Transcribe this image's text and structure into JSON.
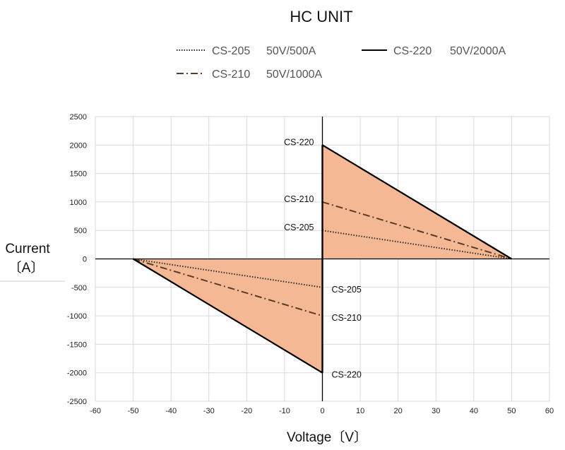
{
  "chart_data": {
    "type": "area",
    "title": "HC UNIT",
    "xlabel": "Voltage〔V〕",
    "ylabel_line1": "Current",
    "ylabel_line2": "〔A〕",
    "xlim": [
      -60,
      60
    ],
    "ylim": [
      -2500,
      2500
    ],
    "x_ticks": [
      -60,
      -50,
      -40,
      -30,
      -20,
      -10,
      0,
      10,
      20,
      30,
      40,
      50,
      60
    ],
    "y_ticks": [
      -2500,
      -2000,
      -1500,
      -1000,
      -500,
      0,
      500,
      1000,
      1500,
      2000,
      2500
    ],
    "grid": true,
    "legend_position": "top",
    "fill_color": "#f4b994",
    "series": [
      {
        "name": "CS-205",
        "spec": "50V/500A",
        "style": "dotted",
        "color": "#2b2b2b",
        "segments": [
          [
            [
              0,
              500
            ],
            [
              50,
              0
            ]
          ],
          [
            [
              -50,
              0
            ],
            [
              0,
              -500
            ]
          ]
        ]
      },
      {
        "name": "CS-210",
        "spec": "50V/1000A",
        "style": "dashdot",
        "color": "#5a3a2a",
        "segments": [
          [
            [
              0,
              1000
            ],
            [
              50,
              0
            ]
          ],
          [
            [
              -50,
              0
            ],
            [
              0,
              -1000
            ]
          ]
        ]
      },
      {
        "name": "CS-220",
        "spec": "50V/2000A",
        "style": "solid",
        "color": "#000000",
        "segments": [
          [
            [
              0,
              2000
            ],
            [
              50,
              0
            ]
          ],
          [
            [
              -50,
              0
            ],
            [
              0,
              -2000
            ]
          ]
        ]
      }
    ],
    "fill_regions": [
      [
        [
          0,
          0
        ],
        [
          0,
          2000
        ],
        [
          50,
          0
        ]
      ],
      [
        [
          -50,
          0
        ],
        [
          0,
          -2000
        ],
        [
          0,
          0
        ]
      ]
    ],
    "annotations": [
      {
        "text": "CS-220",
        "x": 0,
        "y": 2000,
        "side": "left"
      },
      {
        "text": "CS-210",
        "x": 0,
        "y": 1000,
        "side": "left"
      },
      {
        "text": "CS-205",
        "x": 0,
        "y": 500,
        "side": "left"
      },
      {
        "text": "CS-205",
        "x": 0,
        "y": -500,
        "side": "right"
      },
      {
        "text": "CS-210",
        "x": 0,
        "y": -1000,
        "side": "right"
      },
      {
        "text": "CS-220",
        "x": 0,
        "y": -2000,
        "side": "right"
      }
    ]
  }
}
